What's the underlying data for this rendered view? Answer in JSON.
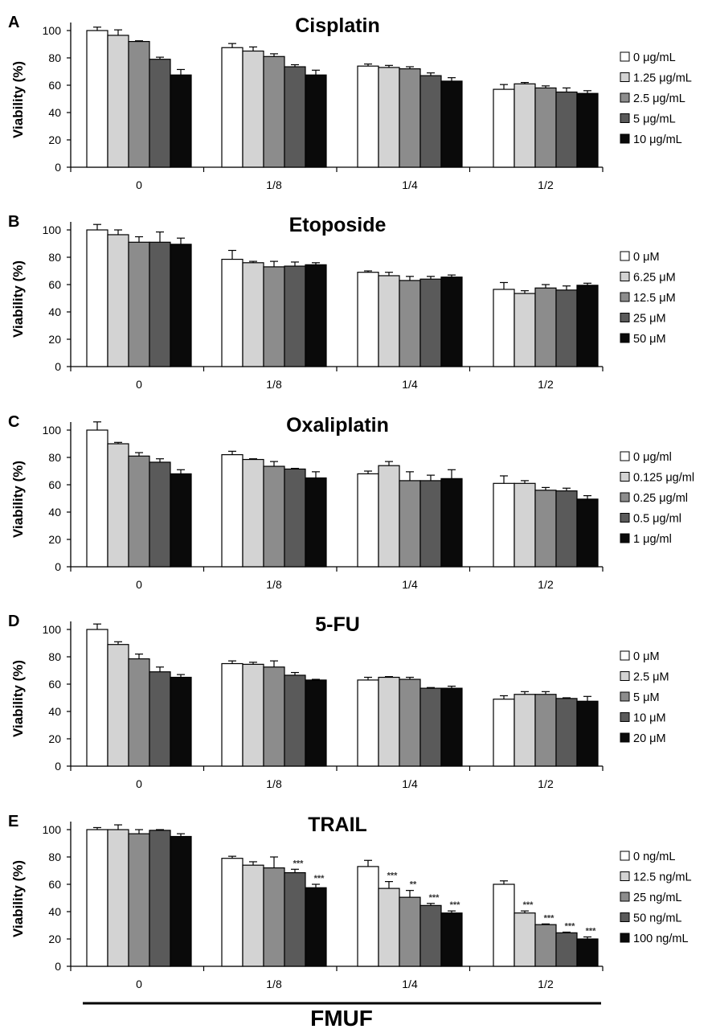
{
  "figure": {
    "xlabel": "FMUF"
  },
  "colors": [
    "#ffffff",
    "#d3d3d3",
    "#8c8c8c",
    "#5a5a5a",
    "#0a0a0a"
  ],
  "chart_data": [
    {
      "type": "bar",
      "panel": "A",
      "title": "Cisplatin",
      "ylabel": "Viability (%)",
      "ylim": [
        0,
        100
      ],
      "yticks": [
        0,
        20,
        40,
        60,
        80,
        100
      ],
      "categories": [
        "0",
        "1/8",
        "1/4",
        "1/2"
      ],
      "series": [
        {
          "name": "0 μg/mL",
          "values": [
            100,
            87.5,
            74,
            57
          ],
          "errors": [
            2.5,
            3,
            1.5,
            3.5
          ]
        },
        {
          "name": "1.25 μg/mL",
          "values": [
            96.5,
            85,
            73,
            61
          ],
          "errors": [
            4,
            3,
            1.5,
            1
          ]
        },
        {
          "name": "2.5 μg/mL",
          "values": [
            92,
            81,
            72,
            58
          ],
          "errors": [
            0.5,
            2,
            1.5,
            1.5
          ]
        },
        {
          "name": "5 μg/mL",
          "values": [
            79,
            73.5,
            67,
            55
          ],
          "errors": [
            1.5,
            1.5,
            2,
            3
          ]
        },
        {
          "name": "10 μg/mL",
          "values": [
            67.5,
            67.5,
            63,
            54
          ],
          "errors": [
            4,
            3.5,
            2.5,
            2
          ]
        }
      ]
    },
    {
      "type": "bar",
      "panel": "B",
      "title": "Etoposide",
      "ylabel": "Viability (%)",
      "ylim": [
        0,
        100
      ],
      "yticks": [
        0,
        20,
        40,
        60,
        80,
        100
      ],
      "categories": [
        "0",
        "1/8",
        "1/4",
        "1/2"
      ],
      "series": [
        {
          "name": "0 μM",
          "values": [
            100,
            78.5,
            69,
            56.5
          ],
          "errors": [
            4,
            6.5,
            1,
            5
          ]
        },
        {
          "name": "6.25 μM",
          "values": [
            96.5,
            76,
            66.5,
            53.5
          ],
          "errors": [
            3.5,
            1,
            2.5,
            2
          ]
        },
        {
          "name": "12.5 μM",
          "values": [
            91,
            73,
            63,
            57.5
          ],
          "errors": [
            4,
            4,
            3,
            2.5
          ]
        },
        {
          "name": "25 μM",
          "values": [
            91,
            73.5,
            64,
            56
          ],
          "errors": [
            7.5,
            3,
            2,
            3
          ]
        },
        {
          "name": "50 μM",
          "values": [
            89.5,
            74.5,
            65.5,
            59.5
          ],
          "errors": [
            4.5,
            1.5,
            1.5,
            1.5
          ]
        }
      ]
    },
    {
      "type": "bar",
      "panel": "C",
      "title": "Oxaliplatin",
      "ylabel": "Viability (%)",
      "ylim": [
        0,
        100
      ],
      "yticks": [
        0,
        20,
        40,
        60,
        80,
        100
      ],
      "categories": [
        "0",
        "1/8",
        "1/4",
        "1/2"
      ],
      "series": [
        {
          "name": "0 μg/ml",
          "values": [
            100,
            82,
            68,
            61
          ],
          "errors": [
            6,
            2.5,
            2,
            5.5
          ]
        },
        {
          "name": "0.125 μg/ml",
          "values": [
            90,
            78.5,
            74,
            61
          ],
          "errors": [
            1,
            0.5,
            3,
            2
          ]
        },
        {
          "name": "0.25 μg/ml",
          "values": [
            81,
            73.5,
            63,
            56
          ],
          "errors": [
            2.5,
            3.5,
            6.5,
            2
          ]
        },
        {
          "name": "0.5 μg/ml",
          "values": [
            76.5,
            71.5,
            63,
            55.5
          ],
          "errors": [
            2.5,
            0.5,
            4,
            2
          ]
        },
        {
          "name": "1 μg/ml",
          "values": [
            68,
            65,
            64.5,
            49.5
          ],
          "errors": [
            3,
            4.5,
            6.5,
            2.5
          ]
        }
      ]
    },
    {
      "type": "bar",
      "panel": "D",
      "title": "5-FU",
      "ylabel": "Viability (%)",
      "ylim": [
        0,
        100
      ],
      "yticks": [
        0,
        20,
        40,
        60,
        80,
        100
      ],
      "categories": [
        "0",
        "1/8",
        "1/4",
        "1/2"
      ],
      "series": [
        {
          "name": "0 μM",
          "values": [
            100,
            75,
            63,
            49
          ],
          "errors": [
            4,
            2,
            2,
            2.5
          ]
        },
        {
          "name": "2.5 μM",
          "values": [
            89,
            74.5,
            65,
            52.5
          ],
          "errors": [
            2,
            1.5,
            0.5,
            2
          ]
        },
        {
          "name": "5 μM",
          "values": [
            78.5,
            72.5,
            63.5,
            52.5
          ],
          "errors": [
            3.5,
            4.5,
            1.5,
            2
          ]
        },
        {
          "name": "10 μM",
          "values": [
            69,
            66.5,
            57,
            49.5
          ],
          "errors": [
            3.5,
            2,
            0.5,
            0.5
          ]
        },
        {
          "name": "20 μM",
          "values": [
            65,
            63,
            57,
            47.5
          ],
          "errors": [
            2,
            0.5,
            1.5,
            3.5
          ]
        }
      ]
    },
    {
      "type": "bar",
      "panel": "E",
      "title": "TRAIL",
      "ylabel": "Viability (%)",
      "ylim": [
        0,
        100
      ],
      "yticks": [
        0,
        20,
        40,
        60,
        80,
        100
      ],
      "categories": [
        "0",
        "1/8",
        "1/4",
        "1/2"
      ],
      "series": [
        {
          "name": "0 ng/mL",
          "values": [
            100,
            79,
            73,
            60
          ],
          "errors": [
            1.5,
            1.5,
            4.5,
            2.5
          ],
          "annotations": [
            "",
            "",
            "",
            ""
          ]
        },
        {
          "name": "12.5 ng/mL",
          "values": [
            100,
            74,
            57,
            39
          ],
          "errors": [
            3.5,
            2.5,
            5,
            1.5
          ],
          "annotations": [
            "",
            "",
            "***",
            "***"
          ]
        },
        {
          "name": "25 ng/mL",
          "values": [
            97,
            72,
            50.5,
            30.5
          ],
          "errors": [
            3,
            8,
            5,
            0.5
          ],
          "annotations": [
            "",
            "",
            "**",
            "***"
          ]
        },
        {
          "name": "50 ng/mL",
          "values": [
            99.5,
            68.5,
            44.5,
            24.5
          ],
          "errors": [
            0.5,
            2.5,
            1.5,
            0.5
          ],
          "annotations": [
            "",
            "***",
            "***",
            "***"
          ]
        },
        {
          "name": "100 ng/mL",
          "values": [
            95,
            57.5,
            39,
            20
          ],
          "errors": [
            2,
            2.5,
            1.5,
            1.5
          ],
          "annotations": [
            "",
            "***",
            "***",
            "***"
          ]
        }
      ]
    }
  ]
}
